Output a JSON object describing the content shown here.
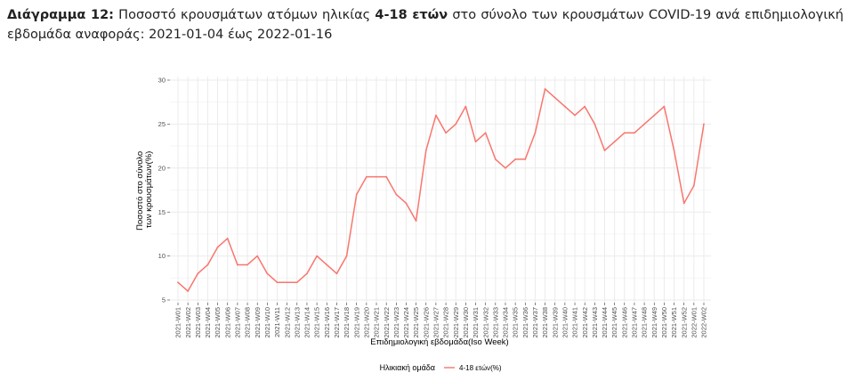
{
  "caption": {
    "label": "Διάγραμμα 12:",
    "text_before": "Ποσοστό κρουσμάτων ατόμων ηλικίας",
    "bold_group": "4-18 ετών",
    "text_after": "στο σύνολο των κρουσμάτων COVID-19 ανά επιδημιολογική εβδομάδα αναφοράς: 2021-01-04 έως 2022-01-16"
  },
  "chart_data": {
    "type": "line",
    "xlabel": "Επιδημιολογική εβδομάδα(Iso Week)",
    "ylabel_lines": [
      "Ποσοστό στο σύνολο",
      "των κρουσμάτων(%)"
    ],
    "ylim": [
      5,
      30
    ],
    "yticks": [
      5,
      10,
      15,
      20,
      25,
      30
    ],
    "grid": true,
    "legend_position": "bottom",
    "legend_title": "Ηλικιακή ομάδα",
    "x": [
      "2021-W01",
      "2021-W02",
      "2021-W03",
      "2021-W04",
      "2021-W05",
      "2021-W06",
      "2021-W07",
      "2021-W08",
      "2021-W09",
      "2021-W10",
      "2021-W11",
      "2021-W12",
      "2021-W13",
      "2021-W14",
      "2021-W15",
      "2021-W16",
      "2021-W17",
      "2021-W18",
      "2021-W19",
      "2021-W20",
      "2021-W21",
      "2021-W22",
      "2021-W23",
      "2021-W24",
      "2021-W25",
      "2021-W26",
      "2021-W27",
      "2021-W28",
      "2021-W29",
      "2021-W30",
      "2021-W31",
      "2021-W32",
      "2021-W33",
      "2021-W34",
      "2021-W35",
      "2021-W36",
      "2021-W37",
      "2021-W38",
      "2021-W39",
      "2021-W40",
      "2021-W41",
      "2021-W42",
      "2021-W43",
      "2021-W44",
      "2021-W45",
      "2021-W46",
      "2021-W47",
      "2021-W48",
      "2021-W49",
      "2021-W50",
      "2021-W51",
      "2021-W52",
      "2022-W01",
      "2022-W02"
    ],
    "series": [
      {
        "name": "4-18 ετών(%)",
        "color": "#F8766D",
        "values": [
          7,
          6,
          8,
          9,
          11,
          12,
          9,
          9,
          10,
          8,
          7,
          7,
          7,
          8,
          10,
          9,
          8,
          10,
          17,
          19,
          19,
          19,
          17,
          16,
          14,
          22,
          26,
          24,
          25,
          27,
          23,
          24,
          21,
          20,
          21,
          21,
          24,
          29,
          28,
          27,
          26,
          27,
          25,
          22,
          23,
          24,
          24,
          25,
          26,
          27,
          22,
          16,
          18,
          25
        ]
      }
    ]
  }
}
